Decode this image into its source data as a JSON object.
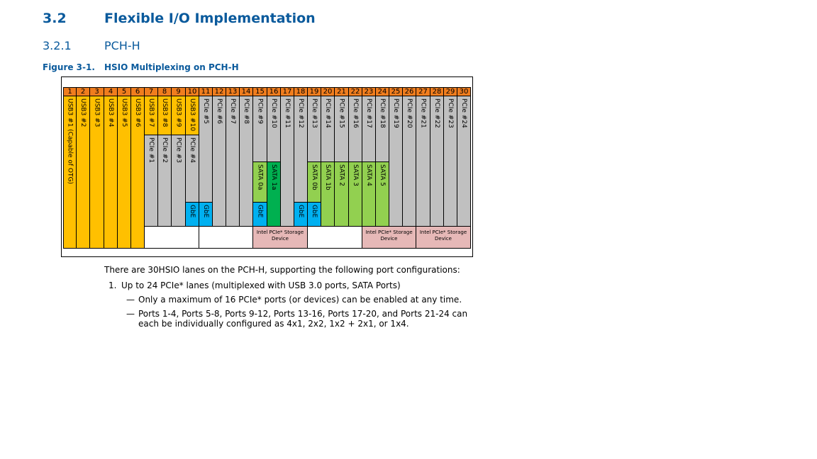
{
  "section": {
    "number": "3.2",
    "title": "Flexible I/O Implementation"
  },
  "subsection": {
    "number": "3.2.1",
    "title": "PCH-H"
  },
  "figure": {
    "label": "Figure 3-1.",
    "title": "HSIO Multiplexing on PCH-H"
  },
  "lanes": [
    "1",
    "2",
    "3",
    "4",
    "5",
    "6",
    "7",
    "8",
    "9",
    "10",
    "11",
    "12",
    "13",
    "14",
    "15",
    "16",
    "17",
    "18",
    "19",
    "20",
    "21",
    "22",
    "23",
    "24",
    "25",
    "26",
    "27",
    "28",
    "29",
    "30"
  ],
  "colors": {
    "header": "#f07d1e",
    "usb": "#ffc000",
    "pcie": "#c0c0c0",
    "gbe": "#00b0f0",
    "sata_light": "#92d050",
    "sata_dark": "#00b050",
    "device": "#e6b8b7",
    "empty": "#ffffff"
  },
  "top_labels": [
    "USB3 #1 (Capable of OTG)",
    "USB3 #2",
    "USB3 #3",
    "USB3 #4",
    "USB3 #5",
    "USB3 #6",
    "USB3 #7",
    "USB3 #8",
    "USB3 #9",
    "USB3 #10",
    "PCIe #5",
    "PCIe #6",
    "PCIe #7",
    "PCIe #8",
    "PCIe #9",
    "PCIe #10",
    "PCIe #11",
    "PCIe #12",
    "PCIe #13",
    "PCIe #14",
    "PCIe #15",
    "PCIe #16",
    "PCIe #17",
    "PCIe #18",
    "PCIe #19",
    "PCIe #20",
    "PCIe #21",
    "PCIe #22",
    "PCIe #23",
    "PCIe #24"
  ],
  "pcie_low": [
    "PCIe #1",
    "PCIe #2",
    "PCIe #3",
    "PCIe #4"
  ],
  "sata": {
    "s0a": "SATA 0a",
    "s1a": "SATA 1a",
    "s0b": "SATA 0b",
    "s1b": "SATA 1b",
    "s2": "SATA 2",
    "s3": "SATA 3",
    "s4": "SATA 4",
    "s5": "SATA 5"
  },
  "gbe": "GbE",
  "storage_device": "Intel PCIe* Storage Device",
  "body": {
    "intro": "There are 30HSIO lanes on the PCH-H, supporting the following port configurations:",
    "item1_num": "1.",
    "item1": "Up to 24 PCIe* lanes (multiplexed with USB 3.0 ports, SATA Ports)",
    "dash": "—",
    "bullet1": "Only a maximum of 16 PCIe* ports (or devices) can be enabled at any time.",
    "bullet2_l1": "Ports 1-4, Ports 5-8, Ports 9-12, Ports 13-16, Ports 17-20, and Ports 21-24 can",
    "bullet2_l2": "each be individually configured as 4x1, 2x2, 1x2 + 2x1, or 1x4."
  }
}
